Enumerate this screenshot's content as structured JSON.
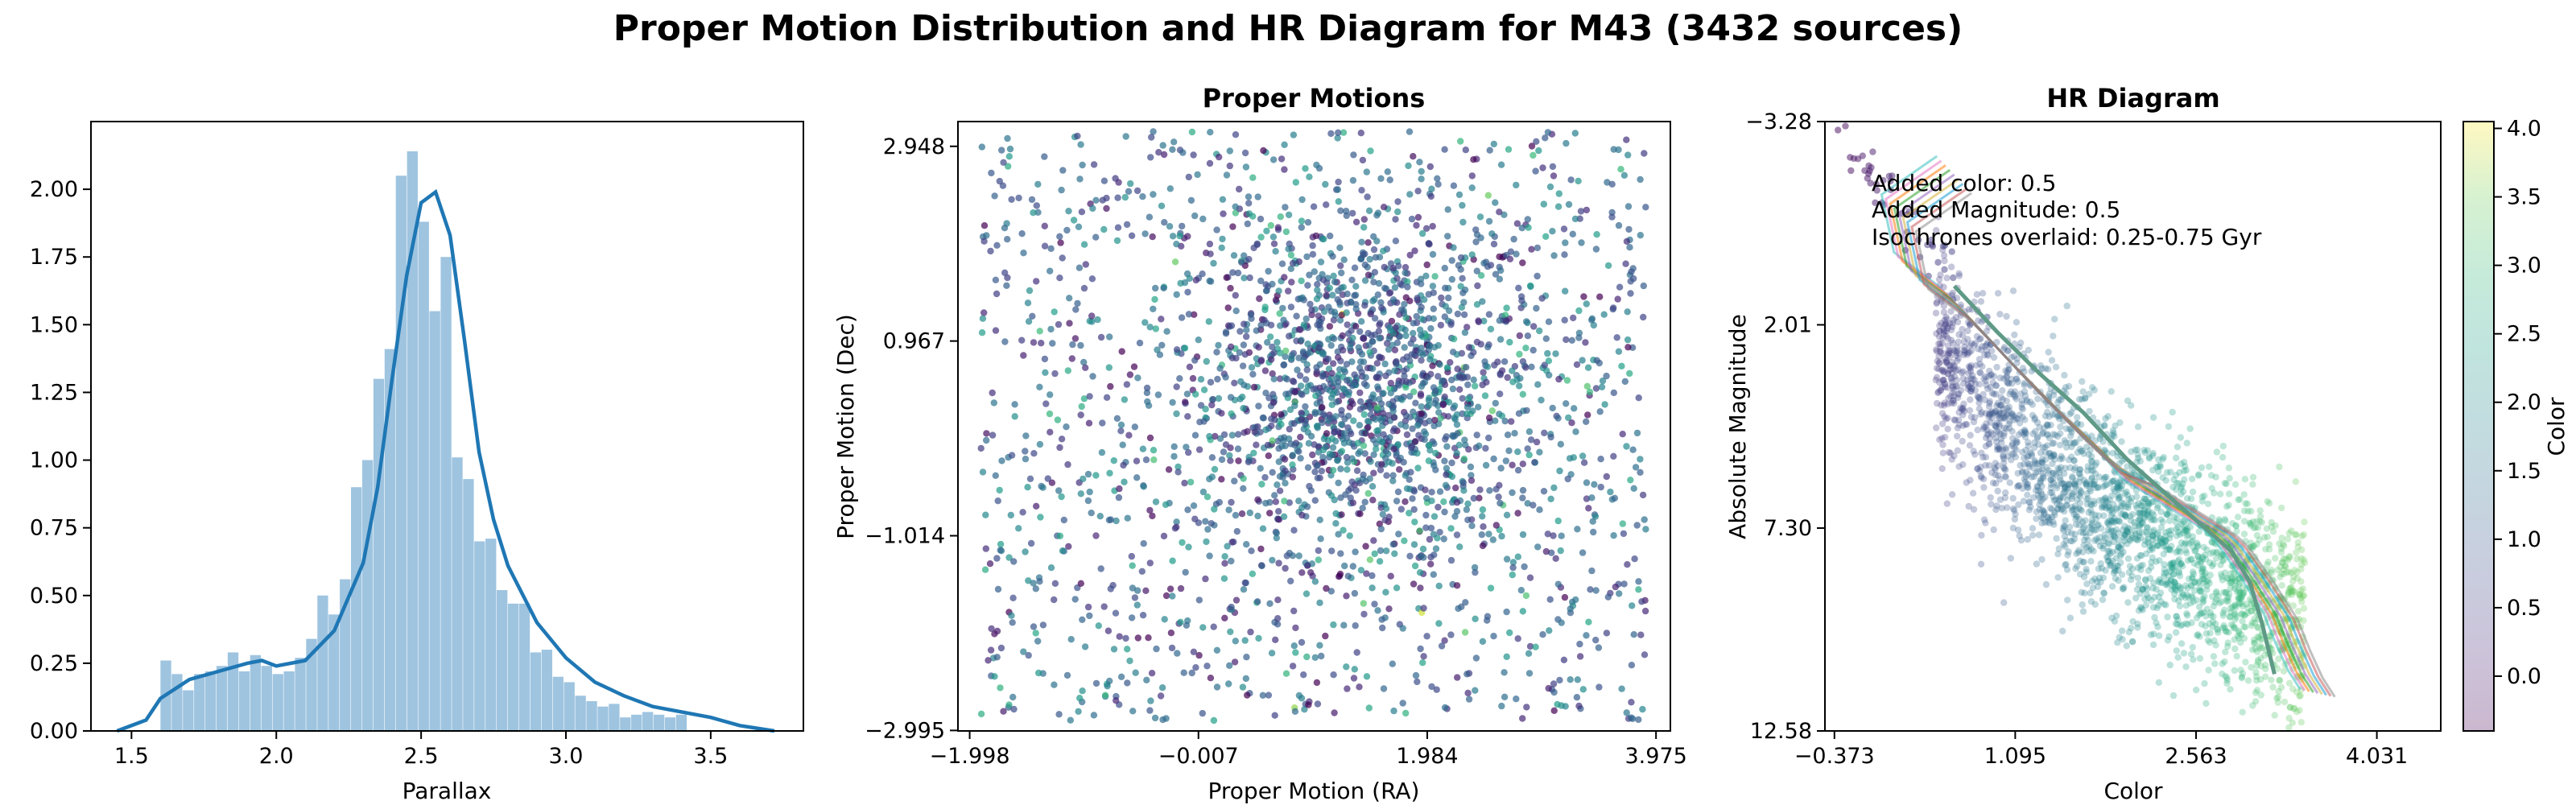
{
  "figure": {
    "suptitle": "Proper Motion Distribution and HR Diagram for M43 (3432 sources)"
  },
  "chart_data": [
    {
      "type": "bar",
      "subtype": "histogram-with-kde",
      "title": "",
      "xlabel": "Parallax",
      "ylabel": "",
      "xlim": [
        1.36,
        3.82
      ],
      "ylim": [
        0,
        2.25
      ],
      "xticks": [
        "1.5",
        "2.0",
        "2.5",
        "3.0",
        "3.5"
      ],
      "xtick_values": [
        1.5,
        2.0,
        2.5,
        3.0,
        3.5
      ],
      "yticks": [
        "0.00",
        "0.25",
        "0.50",
        "0.75",
        "1.00",
        "1.25",
        "1.50",
        "1.75",
        "2.00"
      ],
      "ytick_values": [
        0,
        0.25,
        0.5,
        0.75,
        1.0,
        1.25,
        1.5,
        1.75,
        2.0
      ],
      "bin_width": 0.0387,
      "bins_start": 1.6,
      "bar_color": "#9ec4e0",
      "kde_color": "#1f77b4",
      "values": [
        0.26,
        0.21,
        0.15,
        0.21,
        0.22,
        0.24,
        0.29,
        0.22,
        0.28,
        0.24,
        0.21,
        0.22,
        0.27,
        0.34,
        0.5,
        0.43,
        0.56,
        0.9,
        1.0,
        1.3,
        1.41,
        2.05,
        2.14,
        1.88,
        1.55,
        1.75,
        1.01,
        0.93,
        0.7,
        0.71,
        0.52,
        0.47,
        0.47,
        0.29,
        0.3,
        0.2,
        0.18,
        0.13,
        0.11,
        0.09,
        0.1,
        0.05,
        0.06,
        0.07,
        0.06,
        0.05,
        0.06
      ],
      "kde": {
        "x": [
          1.45,
          1.55,
          1.6,
          1.7,
          1.8,
          1.9,
          1.95,
          2.0,
          2.1,
          2.2,
          2.3,
          2.35,
          2.4,
          2.45,
          2.5,
          2.55,
          2.6,
          2.65,
          2.7,
          2.75,
          2.8,
          2.9,
          3.0,
          3.1,
          3.2,
          3.3,
          3.4,
          3.5,
          3.6,
          3.72
        ],
        "y": [
          0.0,
          0.04,
          0.12,
          0.19,
          0.22,
          0.25,
          0.26,
          0.24,
          0.26,
          0.37,
          0.62,
          0.9,
          1.3,
          1.68,
          1.95,
          1.99,
          1.83,
          1.44,
          1.03,
          0.78,
          0.61,
          0.4,
          0.27,
          0.18,
          0.13,
          0.09,
          0.07,
          0.05,
          0.02,
          0.0
        ]
      }
    },
    {
      "type": "scatter",
      "title": "Proper Motions",
      "xlabel": "Proper Motion (RA)",
      "ylabel": "Proper Motion (Dec)",
      "xlim": [
        -2.1,
        4.1
      ],
      "ylim": [
        -3.0,
        3.2
      ],
      "xticks": [
        "−1.998",
        "−0.007",
        "1.984",
        "3.975"
      ],
      "xtick_values": [
        -1.998,
        -0.007,
        1.984,
        3.975
      ],
      "yticks": [
        "−2.995",
        "−1.014",
        "0.967",
        "2.948"
      ],
      "ytick_values": [
        -2.995,
        -1.014,
        0.967,
        2.948
      ],
      "n_points": 3432,
      "distribution": {
        "cluster_center": [
          1.4,
          0.5
        ],
        "cluster_sigma": [
          0.75,
          0.85
        ],
        "cluster_fraction": 0.5,
        "field_range_x": [
          -1.9,
          3.9
        ],
        "field_range_y": [
          -2.9,
          3.1
        ]
      },
      "colormap": "viridis"
    },
    {
      "type": "scatter",
      "title": "HR Diagram",
      "xlabel": "Color",
      "ylabel": "Absolute Magnitude",
      "xlim": [
        -0.45,
        4.55
      ],
      "ylim": [
        12.58,
        -3.28
      ],
      "y_inverted": true,
      "xticks": [
        "−0.373",
        "1.095",
        "2.563",
        "4.031"
      ],
      "xtick_values": [
        -0.373,
        1.095,
        2.563,
        4.031
      ],
      "yticks": [
        "−3.28",
        "2.01",
        "7.30",
        "12.58"
      ],
      "ytick_values": [
        -3.28,
        2.01,
        7.3,
        12.58
      ],
      "annotations": [
        "Added color: 0.5",
        "Added Magnitude: 0.5",
        "Isochrones overlaid: 0.25-0.75 Gyr"
      ],
      "colorbar": {
        "label": "Color",
        "range": [
          -0.4,
          4.05
        ],
        "ticks": [
          "0.0",
          "0.5",
          "1.0",
          "1.5",
          "2.0",
          "2.5",
          "3.0",
          "3.5",
          "4.0"
        ],
        "tick_values": [
          0,
          0.5,
          1.0,
          1.5,
          2.0,
          2.5,
          3.0,
          3.5,
          4.0
        ],
        "colormap": "viridis"
      },
      "main_sequence": {
        "color": [
          0.1,
          0.6,
          0.9,
          1.3,
          1.7,
          2.1,
          2.5,
          2.9,
          3.3
        ],
        "magnitude": [
          1.0,
          2.7,
          4.0,
          5.1,
          6.1,
          7.0,
          7.9,
          8.6,
          9.3
        ]
      },
      "isochrones": {
        "age_range_gyr": [
          0.25,
          0.75
        ],
        "colors": [
          "#3cc0c0",
          "#e377c2",
          "#ff7f0e",
          "#2ca02c",
          "#9467bd",
          "#d4b33e",
          "#1f9fd4",
          "#c75a5a",
          "#8c8c8c"
        ],
        "base_curve": {
          "color": [
            0.6,
            0.15,
            0.25,
            0.6,
            0.8,
            1.15,
            1.55,
            1.85,
            2.1,
            2.35,
            2.55,
            2.75,
            2.85,
            3.05,
            3.25,
            3.35,
            3.45,
            3.55
          ],
          "magnitude": [
            -1.9,
            -0.9,
            0.6,
            1.45,
            2.1,
            3.3,
            4.6,
            5.5,
            6.1,
            6.6,
            7.0,
            7.4,
            7.7,
            8.6,
            9.6,
            10.4,
            11.1,
            11.6
          ]
        }
      }
    }
  ]
}
